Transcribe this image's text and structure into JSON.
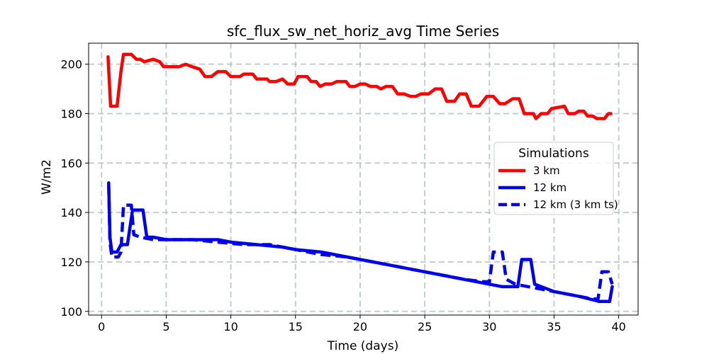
{
  "chart_data": {
    "type": "line",
    "title": "sfc_flux_sw_net_horiz_avg Time Series",
    "xlabel": "Time (days)",
    "ylabel": "W/m2",
    "xlim": [
      -1,
      41.5
    ],
    "ylim": [
      98.5,
      208.5
    ],
    "xticks": [
      0,
      5,
      10,
      15,
      20,
      25,
      30,
      35,
      40
    ],
    "yticks": [
      100,
      120,
      140,
      160,
      180,
      200
    ],
    "grid": true,
    "legend": {
      "title": "Simulations",
      "position": "center-right"
    },
    "series": [
      {
        "name": "3 km",
        "color": "#ff0000",
        "style": "solid",
        "points": [
          [
            0.5,
            203
          ],
          [
            0.7,
            183
          ],
          [
            1.2,
            183
          ],
          [
            1.5,
            197
          ],
          [
            1.7,
            204
          ],
          [
            2.3,
            204
          ],
          [
            2.7,
            202
          ],
          [
            3.0,
            202
          ],
          [
            3.3,
            201
          ],
          [
            4.0,
            202
          ],
          [
            4.5,
            201
          ],
          [
            4.8,
            199
          ],
          [
            5.5,
            199
          ],
          [
            6.0,
            199
          ],
          [
            6.5,
            200
          ],
          [
            7.0,
            199
          ],
          [
            7.6,
            198
          ],
          [
            8.0,
            195
          ],
          [
            8.5,
            195
          ],
          [
            9.0,
            197
          ],
          [
            9.6,
            197
          ],
          [
            10.0,
            195
          ],
          [
            10.7,
            195
          ],
          [
            11.0,
            196
          ],
          [
            11.7,
            196
          ],
          [
            12.0,
            194
          ],
          [
            12.8,
            194
          ],
          [
            13.0,
            193
          ],
          [
            13.5,
            193
          ],
          [
            14.0,
            194
          ],
          [
            14.4,
            192
          ],
          [
            14.9,
            192
          ],
          [
            15.2,
            195
          ],
          [
            15.9,
            195
          ],
          [
            16.2,
            193
          ],
          [
            16.6,
            193
          ],
          [
            16.9,
            191
          ],
          [
            17.3,
            192
          ],
          [
            17.8,
            192
          ],
          [
            18.2,
            193
          ],
          [
            18.9,
            193
          ],
          [
            19.2,
            191
          ],
          [
            19.6,
            191
          ],
          [
            20.0,
            192
          ],
          [
            20.4,
            192
          ],
          [
            20.8,
            191
          ],
          [
            21.3,
            191
          ],
          [
            21.6,
            190
          ],
          [
            22.0,
            191
          ],
          [
            22.5,
            191
          ],
          [
            22.9,
            188
          ],
          [
            23.4,
            188
          ],
          [
            23.9,
            187
          ],
          [
            24.3,
            187
          ],
          [
            24.7,
            188
          ],
          [
            25.3,
            188
          ],
          [
            25.8,
            190
          ],
          [
            26.3,
            190
          ],
          [
            26.7,
            185
          ],
          [
            27.3,
            185
          ],
          [
            27.7,
            188
          ],
          [
            28.2,
            188
          ],
          [
            28.6,
            183
          ],
          [
            29.2,
            183
          ],
          [
            29.8,
            187
          ],
          [
            30.3,
            187
          ],
          [
            30.8,
            184
          ],
          [
            31.2,
            184
          ],
          [
            31.8,
            186
          ],
          [
            32.3,
            186
          ],
          [
            32.7,
            180
          ],
          [
            33.4,
            180
          ],
          [
            33.6,
            178
          ],
          [
            34.0,
            180
          ],
          [
            34.5,
            180
          ],
          [
            34.8,
            182
          ],
          [
            35.8,
            183
          ],
          [
            36.1,
            180
          ],
          [
            36.6,
            180
          ],
          [
            36.9,
            181
          ],
          [
            37.3,
            181
          ],
          [
            37.6,
            179
          ],
          [
            38.0,
            179
          ],
          [
            38.3,
            178
          ],
          [
            38.9,
            178
          ],
          [
            39.2,
            180
          ],
          [
            39.4,
            180
          ]
        ]
      },
      {
        "name": "12 km",
        "color": "#0000ee",
        "style": "solid",
        "points": [
          [
            0.55,
            152
          ],
          [
            0.65,
            130
          ],
          [
            0.8,
            124
          ],
          [
            1.2,
            124
          ],
          [
            1.5,
            127
          ],
          [
            2.0,
            127
          ],
          [
            2.4,
            141
          ],
          [
            3.2,
            141
          ],
          [
            3.5,
            130
          ],
          [
            4.0,
            130
          ],
          [
            5.0,
            129
          ],
          [
            7.0,
            129
          ],
          [
            9.0,
            129
          ],
          [
            10.0,
            128
          ],
          [
            12.0,
            127
          ],
          [
            14.0,
            126
          ],
          [
            15.0,
            125
          ],
          [
            17.0,
            124
          ],
          [
            19.0,
            122
          ],
          [
            20.0,
            121
          ],
          [
            22.0,
            119
          ],
          [
            24.0,
            117
          ],
          [
            25.0,
            116
          ],
          [
            27.0,
            114
          ],
          [
            28.0,
            113
          ],
          [
            30.0,
            111
          ],
          [
            31.0,
            110
          ],
          [
            32.2,
            110
          ],
          [
            32.5,
            121
          ],
          [
            33.2,
            121
          ],
          [
            33.5,
            111
          ],
          [
            34.5,
            109
          ],
          [
            35.0,
            108
          ],
          [
            37.0,
            106
          ],
          [
            38.5,
            104
          ],
          [
            39.3,
            104
          ],
          [
            39.5,
            110
          ]
        ]
      },
      {
        "name": "12 km (3 km ts)",
        "color": "#0000ee",
        "style": "dashed",
        "points": [
          [
            0.55,
            151
          ],
          [
            0.65,
            128
          ],
          [
            0.8,
            122
          ],
          [
            1.3,
            122
          ],
          [
            1.5,
            124
          ],
          [
            1.7,
            143
          ],
          [
            2.3,
            143
          ],
          [
            2.5,
            131
          ],
          [
            3.0,
            130
          ],
          [
            4.0,
            129
          ],
          [
            5.0,
            129
          ],
          [
            7.0,
            129
          ],
          [
            9.0,
            128
          ],
          [
            11.0,
            127
          ],
          [
            13.0,
            127
          ],
          [
            15.0,
            125
          ],
          [
            17.0,
            123
          ],
          [
            19.0,
            122
          ],
          [
            20.0,
            121
          ],
          [
            22.0,
            119
          ],
          [
            24.0,
            117
          ],
          [
            26.0,
            115
          ],
          [
            28.0,
            113
          ],
          [
            29.5,
            112
          ],
          [
            30.0,
            112
          ],
          [
            30.3,
            124
          ],
          [
            31.0,
            124
          ],
          [
            31.3,
            113
          ],
          [
            32.0,
            111
          ],
          [
            33.0,
            110
          ],
          [
            35.0,
            108
          ],
          [
            37.0,
            106
          ],
          [
            38.0,
            105
          ],
          [
            38.4,
            105
          ],
          [
            38.7,
            116
          ],
          [
            39.2,
            116
          ],
          [
            39.5,
            111
          ]
        ]
      }
    ]
  }
}
